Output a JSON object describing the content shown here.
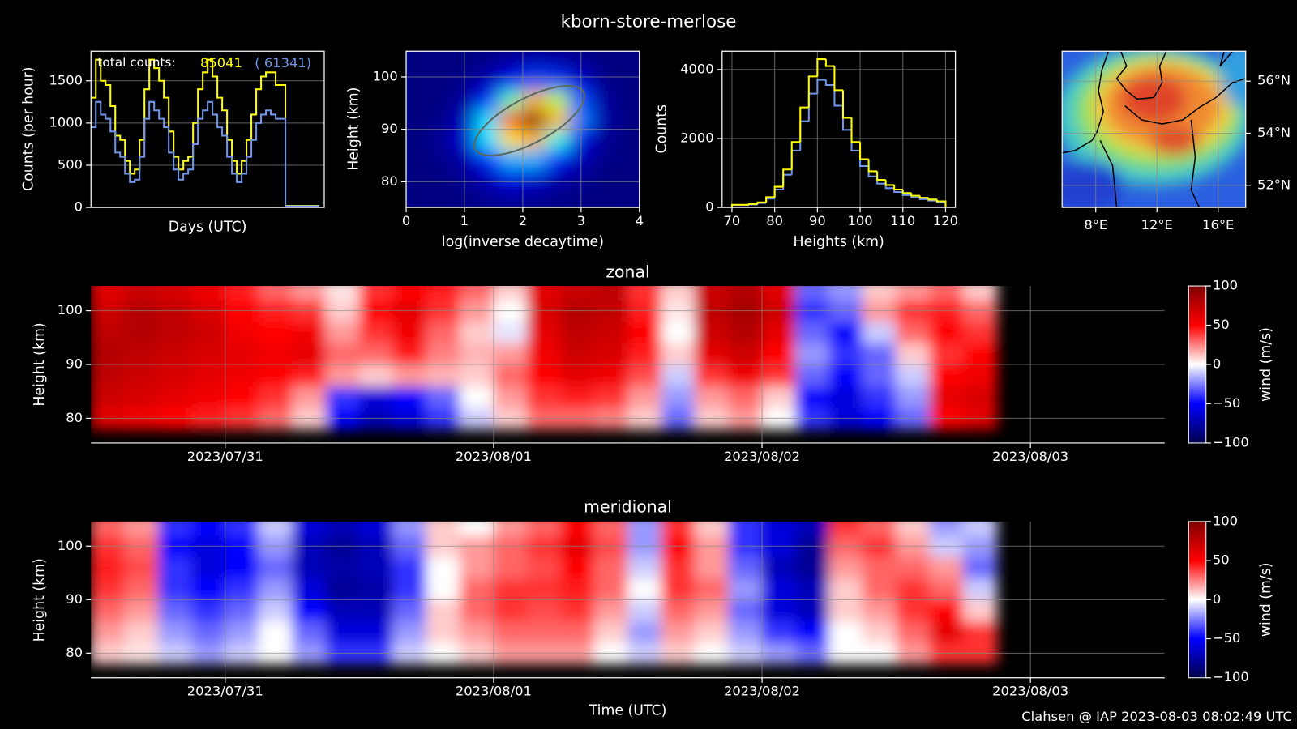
{
  "title": "kborn-store-merlose",
  "footer": "Clahsen @ IAP 2023-08-03 08:02:49 UTC",
  "chart_data": [
    {
      "type": "line",
      "step": true,
      "xlabel": "Days (UTC)",
      "ylabel": "Counts (per hour)",
      "annotations": [
        "total counts:",
        "85041",
        "( 61341)"
      ],
      "x": [
        0,
        2,
        4,
        6,
        8,
        10,
        12,
        14,
        16,
        18,
        20,
        22,
        24,
        26,
        28,
        30,
        32,
        34,
        36,
        38,
        40,
        42,
        44,
        46,
        48,
        50,
        52,
        54,
        56,
        58,
        60,
        62,
        64,
        66,
        68,
        70,
        72,
        74,
        76,
        78,
        80,
        82,
        84,
        86,
        88,
        90,
        92,
        94
      ],
      "xlim": [
        0,
        96
      ],
      "ylim": [
        0,
        1850
      ],
      "yticks": [
        0,
        500,
        1000,
        1500
      ],
      "grid": true,
      "series": [
        {
          "color": "#ffff00",
          "values": [
            1300,
            1750,
            1500,
            1450,
            1200,
            850,
            800,
            550,
            400,
            450,
            800,
            1400,
            1750,
            1650,
            1500,
            1300,
            900,
            600,
            450,
            550,
            600,
            1000,
            1400,
            1600,
            1750,
            1550,
            1300,
            1150,
            800,
            550,
            400,
            550,
            800,
            1100,
            1400,
            1550,
            1600,
            1600,
            1450,
            1450,
            20,
            20,
            20,
            20,
            20,
            20,
            20,
            20
          ]
        },
        {
          "color": "#6f96e8",
          "values": [
            950,
            1250,
            1100,
            1050,
            900,
            650,
            600,
            400,
            300,
            330,
            600,
            1050,
            1250,
            1150,
            1050,
            950,
            650,
            450,
            330,
            400,
            450,
            750,
            1050,
            1150,
            1250,
            1100,
            950,
            850,
            600,
            400,
            300,
            400,
            600,
            800,
            1000,
            1100,
            1150,
            1100,
            1050,
            1050,
            15,
            15,
            15,
            15,
            15,
            15,
            15,
            15
          ]
        }
      ]
    },
    {
      "type": "heatmap",
      "colormap": "jet",
      "xlabel": "log(inverse decaytime)",
      "ylabel": "Height (km)",
      "x": [
        0.2,
        0.6,
        1.0,
        1.4,
        1.8,
        2.2,
        2.6,
        3.0,
        3.4,
        3.8
      ],
      "y": [
        76.96,
        80.69,
        84.41,
        88.14,
        91.86,
        95.59,
        99.31,
        103.04
      ],
      "z": [
        [
          0,
          0,
          0,
          0.02,
          0.03,
          0.02,
          0.01,
          0,
          0,
          0
        ],
        [
          0,
          0,
          0.02,
          0.05,
          0.1,
          0.08,
          0.04,
          0.02,
          0,
          0
        ],
        [
          0,
          0.01,
          0.04,
          0.15,
          0.3,
          0.3,
          0.15,
          0.05,
          0.01,
          0
        ],
        [
          0,
          0.02,
          0.08,
          0.35,
          0.65,
          0.7,
          0.4,
          0.1,
          0.02,
          0
        ],
        [
          0,
          0.01,
          0.06,
          0.35,
          0.8,
          1.0,
          0.7,
          0.25,
          0.04,
          0
        ],
        [
          0,
          0,
          0.03,
          0.15,
          0.45,
          0.7,
          0.55,
          0.2,
          0.03,
          0
        ],
        [
          0,
          0,
          0.01,
          0.05,
          0.12,
          0.2,
          0.18,
          0.08,
          0.01,
          0
        ],
        [
          0,
          0,
          0,
          0.01,
          0.03,
          0.05,
          0.04,
          0.02,
          0,
          0
        ]
      ],
      "xlim": [
        0,
        4
      ],
      "ylim": [
        75.1,
        104.9
      ],
      "xticks": [
        0,
        1,
        2,
        3,
        4
      ],
      "yticks": [
        80,
        90,
        100
      ],
      "grid": true
    },
    {
      "type": "histogram",
      "xlabel": "Heights (km)",
      "ylabel": "Counts",
      "bins": [
        70,
        72,
        74,
        76,
        78,
        80,
        82,
        84,
        86,
        88,
        90,
        92,
        94,
        96,
        98,
        100,
        102,
        104,
        106,
        108,
        110,
        112,
        114,
        116,
        118,
        120
      ],
      "series": [
        {
          "color": "#6f96e8",
          "values": [
            70,
            70,
            85,
            130,
            260,
            520,
            950,
            1650,
            2500,
            3300,
            3700,
            3550,
            2950,
            2250,
            1650,
            1200,
            900,
            690,
            560,
            450,
            360,
            290,
            240,
            200,
            150
          ]
        },
        {
          "color": "#ffff00",
          "values": [
            80,
            80,
            100,
            150,
            300,
            600,
            1100,
            1900,
            2900,
            3800,
            4300,
            4100,
            3400,
            2600,
            1900,
            1400,
            1050,
            800,
            650,
            520,
            420,
            340,
            280,
            230,
            180
          ]
        }
      ],
      "xlim": [
        67.7,
        122.3
      ],
      "ylim": [
        0,
        4530
      ],
      "xticks": [
        70,
        80,
        90,
        100,
        110,
        120
      ],
      "yticks": [
        0,
        2000,
        4000
      ],
      "grid": true
    },
    {
      "type": "map",
      "xlim": [
        5.8,
        17.8
      ],
      "ylim": [
        51.15,
        57.15
      ],
      "xticks": [
        {
          "value": 8,
          "label": "8°E"
        },
        {
          "value": 12,
          "label": "12°E"
        },
        {
          "value": 16,
          "label": "16°E"
        }
      ],
      "yticks": [
        {
          "value": 52,
          "label": "52°N"
        },
        {
          "value": 54,
          "label": "54°N"
        },
        {
          "value": 56,
          "label": "56°N"
        }
      ],
      "grid": true
    },
    {
      "type": "heatmap",
      "colormap": "seismic",
      "title": "zonal",
      "ylabel": "Height (km)",
      "x": [
        211.5625,
        211.6875,
        211.8125,
        211.9375,
        212.0625,
        212.1875,
        212.3125,
        212.4375,
        212.5625,
        212.6875,
        212.8125,
        212.9375,
        213.0625,
        213.1875,
        213.3125,
        213.4375,
        213.5625,
        213.6875,
        213.8125,
        213.9375,
        214.0625,
        214.1875,
        214.3125,
        214.4375,
        214.5625,
        214.6875,
        214.8125
      ],
      "y": [
        80,
        84,
        88,
        92,
        96,
        100,
        104
      ],
      "z": [
        [
          60,
          55,
          50,
          45,
          40,
          30,
          10,
          -50,
          -70,
          -60,
          -40,
          -10,
          10,
          30,
          30,
          25,
          10,
          -30,
          10,
          20,
          0,
          -40,
          -60,
          -50,
          -30,
          50,
          60
        ],
        [
          70,
          65,
          60,
          55,
          50,
          40,
          20,
          -40,
          -60,
          -50,
          -30,
          0,
          20,
          40,
          45,
          40,
          20,
          -20,
          20,
          30,
          10,
          -50,
          -60,
          -40,
          -20,
          60,
          65
        ],
        [
          75,
          70,
          65,
          60,
          55,
          50,
          45,
          20,
          10,
          20,
          15,
          10,
          30,
          50,
          60,
          55,
          35,
          -10,
          40,
          55,
          40,
          -30,
          -50,
          -30,
          -10,
          50,
          55
        ],
        [
          80,
          75,
          70,
          65,
          60,
          55,
          60,
          30,
          30,
          45,
          25,
          15,
          20,
          55,
          70,
          65,
          45,
          10,
          60,
          70,
          50,
          -20,
          -40,
          -30,
          10,
          40,
          50
        ],
        [
          75,
          80,
          75,
          70,
          55,
          50,
          55,
          20,
          40,
          55,
          30,
          10,
          -5,
          60,
          75,
          70,
          50,
          0,
          70,
          80,
          60,
          -30,
          -50,
          -10,
          30,
          50,
          40
        ],
        [
          70,
          80,
          75,
          65,
          50,
          45,
          40,
          10,
          50,
          60,
          40,
          20,
          0,
          65,
          80,
          75,
          45,
          5,
          75,
          85,
          70,
          -40,
          -30,
          20,
          40,
          45,
          30
        ],
        [
          60,
          70,
          65,
          55,
          45,
          30,
          20,
          5,
          40,
          50,
          45,
          30,
          10,
          60,
          70,
          75,
          40,
          10,
          70,
          80,
          60,
          -30,
          -20,
          10,
          20,
          30,
          10
        ]
      ],
      "xlim": [
        211.5,
        215.5
      ],
      "ylim": [
        75.4,
        104.6
      ],
      "clim": [
        -100,
        100
      ],
      "xticks": [
        {
          "value": 212,
          "label": "2023/07/31"
        },
        {
          "value": 213,
          "label": "2023/08/01"
        },
        {
          "value": 214,
          "label": "2023/08/02"
        },
        {
          "value": 215,
          "label": "2023/08/03"
        }
      ],
      "yticks": [
        80,
        90,
        100
      ],
      "grid": true,
      "colorbar": {
        "label": "wind (m/s)",
        "ticks": [
          100,
          50,
          0,
          {
            "value": -50,
            "label": "−50"
          },
          {
            "value": -100,
            "label": "−100"
          }
        ]
      }
    },
    {
      "type": "heatmap",
      "colormap": "seismic",
      "title": "meridional",
      "ylabel": "Height (km)",
      "xlabel": "Time (UTC)",
      "x": [
        211.5625,
        211.6875,
        211.8125,
        211.9375,
        212.0625,
        212.1875,
        212.3125,
        212.4375,
        212.5625,
        212.6875,
        212.8125,
        212.9375,
        213.0625,
        213.1875,
        213.3125,
        213.4375,
        213.5625,
        213.6875,
        213.8125,
        213.9375,
        214.0625,
        214.1875,
        214.3125,
        214.4375,
        214.5625,
        214.6875,
        214.8125
      ],
      "y": [
        80,
        84,
        88,
        92,
        96,
        100,
        104
      ],
      "z": [
        [
          10,
          5,
          -10,
          -20,
          -10,
          0,
          -20,
          -40,
          -40,
          -10,
          0,
          10,
          20,
          20,
          20,
          0,
          -10,
          10,
          0,
          -10,
          -20,
          -30,
          0,
          0,
          20,
          40,
          40
        ],
        [
          20,
          10,
          -20,
          -30,
          -20,
          0,
          -30,
          -60,
          -60,
          -20,
          10,
          20,
          30,
          30,
          30,
          10,
          -20,
          20,
          10,
          -20,
          -40,
          -50,
          0,
          10,
          30,
          60,
          40
        ],
        [
          30,
          20,
          -30,
          -40,
          -30,
          -10,
          -50,
          -70,
          -70,
          -30,
          10,
          30,
          40,
          35,
          40,
          20,
          -10,
          30,
          20,
          -30,
          -60,
          -70,
          10,
          20,
          40,
          50,
          10
        ],
        [
          40,
          30,
          -40,
          -50,
          -40,
          -20,
          -60,
          -80,
          -75,
          -40,
          0,
          30,
          40,
          40,
          45,
          30,
          0,
          40,
          30,
          -20,
          -60,
          -70,
          10,
          30,
          40,
          30,
          -10
        ],
        [
          45,
          35,
          -40,
          -60,
          -50,
          -30,
          -70,
          -75,
          -70,
          -40,
          0,
          20,
          30,
          35,
          50,
          30,
          -10,
          40,
          20,
          -30,
          -70,
          -80,
          20,
          30,
          30,
          20,
          -30
        ],
        [
          40,
          30,
          -50,
          -60,
          -50,
          -20,
          -70,
          -80,
          -70,
          -30,
          10,
          20,
          30,
          40,
          60,
          35,
          -20,
          50,
          20,
          -40,
          -60,
          -80,
          30,
          40,
          20,
          -10,
          -20
        ],
        [
          30,
          20,
          -40,
          -50,
          -40,
          -10,
          -60,
          -70,
          -60,
          -20,
          10,
          0,
          20,
          30,
          50,
          30,
          -20,
          40,
          10,
          -40,
          -60,
          -70,
          40,
          30,
          10,
          -20,
          -10
        ]
      ],
      "xlim": [
        211.5,
        215.5
      ],
      "ylim": [
        75.4,
        104.6
      ],
      "clim": [
        -100,
        100
      ],
      "xticks": [
        {
          "value": 212,
          "label": "2023/07/31"
        },
        {
          "value": 213,
          "label": "2023/08/01"
        },
        {
          "value": 214,
          "label": "2023/08/02"
        },
        {
          "value": 215,
          "label": "2023/08/03"
        }
      ],
      "yticks": [
        80,
        90,
        100
      ],
      "grid": true,
      "colorbar": {
        "label": "wind (m/s)",
        "ticks": [
          100,
          50,
          0,
          {
            "value": -50,
            "label": "−50"
          },
          {
            "value": -100,
            "label": "−100"
          }
        ]
      }
    }
  ]
}
